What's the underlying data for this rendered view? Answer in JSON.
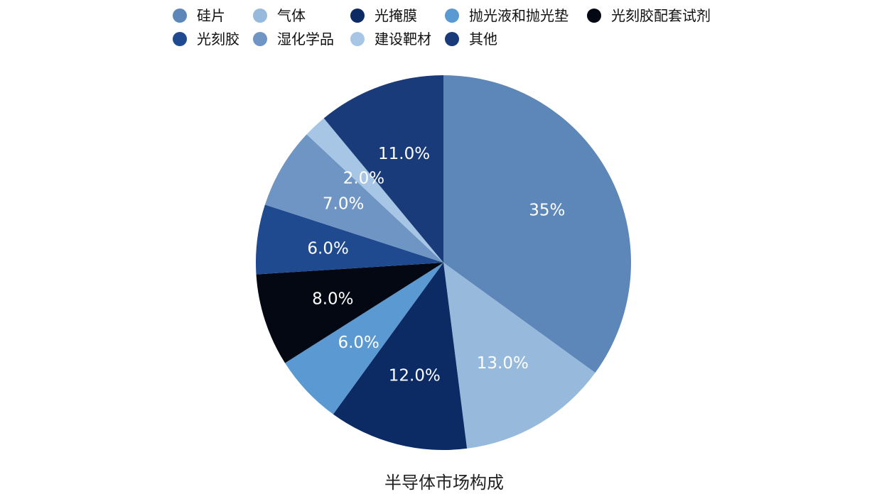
{
  "chart_data": {
    "type": "pie",
    "caption": "半导体市场构成",
    "legend_position": "top",
    "slices": [
      {
        "label": "硅片",
        "value": 35,
        "display": "35%",
        "color": "#5d87b9"
      },
      {
        "label": "气体",
        "value": 13,
        "display": "13.0%",
        "color": "#97b9dc"
      },
      {
        "label": "光掩膜",
        "value": 12,
        "display": "12.0%",
        "color": "#0c2a63"
      },
      {
        "label": "抛光液和抛光垫",
        "value": 6,
        "display": "6.0%",
        "color": "#5b99d2"
      },
      {
        "label": "光刻胶配套试剂",
        "value": 8,
        "display": "8.0%",
        "color": "#030812"
      },
      {
        "label": "光刻胶",
        "value": 6,
        "display": "6.0%",
        "color": "#1f4a8f"
      },
      {
        "label": "湿化学品",
        "value": 7,
        "display": "7.0%",
        "color": "#6f95c4"
      },
      {
        "label": "建设靶材",
        "value": 2,
        "display": "2.0%",
        "color": "#a7c6e6"
      },
      {
        "label": "其他",
        "value": 11,
        "display": "11.0%",
        "color": "#1a3b79"
      }
    ]
  }
}
